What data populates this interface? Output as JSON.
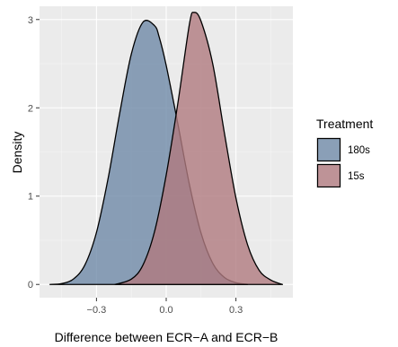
{
  "chart_data": {
    "type": "area",
    "title": "",
    "xlabel": "Difference between ECR−A and ECR−B",
    "ylabel": "Density",
    "xlim": [
      -0.545,
      0.545
    ],
    "ylim": [
      -0.15,
      3.15
    ],
    "x_ticks": [
      -0.3,
      0.0,
      0.3
    ],
    "x_tick_labels": [
      "−0.3",
      "0.0",
      "0.3"
    ],
    "y_ticks": [
      0,
      1,
      2,
      3
    ],
    "y_tick_labels": [
      "0",
      "1",
      "2",
      "3"
    ],
    "grid": true,
    "legend": {
      "title": "Treatment",
      "position": "right"
    },
    "series": [
      {
        "name": "180s",
        "color": "#6f8aa8",
        "x": [
          -0.5,
          -0.45,
          -0.4,
          -0.35,
          -0.3,
          -0.25,
          -0.2,
          -0.15,
          -0.1,
          -0.05,
          -0.03,
          0.0,
          0.05,
          0.1,
          0.15,
          0.2,
          0.25,
          0.3,
          0.35
        ],
        "values": [
          0.0,
          0.01,
          0.06,
          0.22,
          0.59,
          1.2,
          1.94,
          2.61,
          2.97,
          2.93,
          2.8,
          2.48,
          1.82,
          1.13,
          0.58,
          0.24,
          0.08,
          0.02,
          0.0
        ]
      },
      {
        "name": "15s",
        "color": "#b07a80",
        "x": [
          -0.22,
          -0.15,
          -0.1,
          -0.05,
          0.0,
          0.05,
          0.1,
          0.12,
          0.15,
          0.2,
          0.25,
          0.3,
          0.35,
          0.4,
          0.45,
          0.5
        ],
        "values": [
          0.0,
          0.06,
          0.22,
          0.6,
          1.24,
          2.05,
          2.95,
          3.08,
          2.98,
          2.5,
          1.72,
          0.98,
          0.45,
          0.16,
          0.05,
          0.0
        ]
      }
    ]
  }
}
